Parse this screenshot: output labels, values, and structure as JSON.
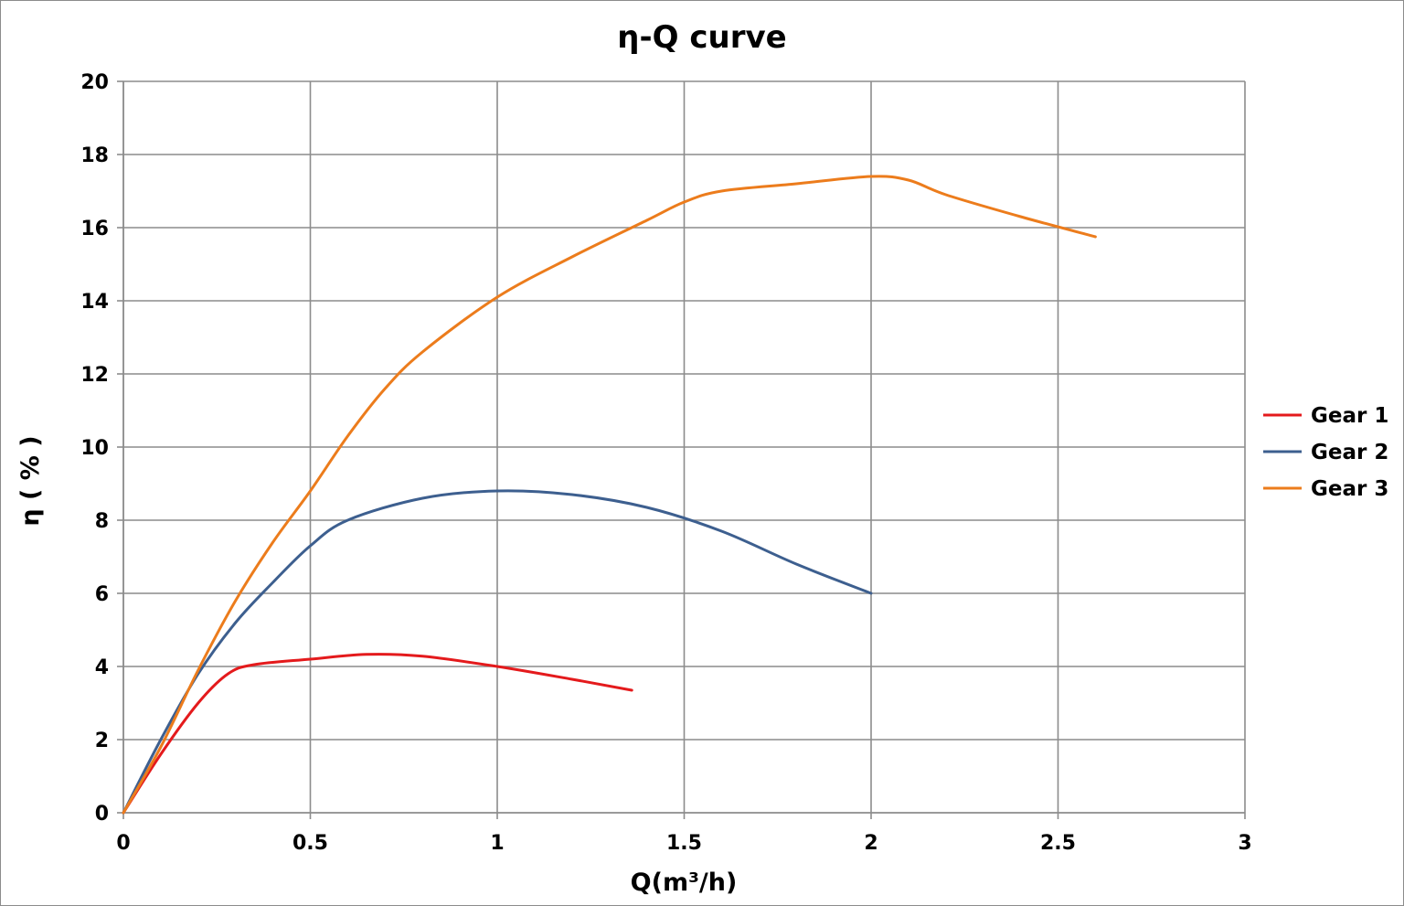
{
  "chart_data": {
    "type": "line",
    "title": "η-Q  curve",
    "xlabel": "Q(m³/h)",
    "ylabel": "η ( % )",
    "xlim": [
      0,
      3
    ],
    "ylim": [
      0,
      20
    ],
    "x_ticks": [
      0,
      0.5,
      1,
      1.5,
      2,
      2.5,
      3
    ],
    "x_tick_labels": [
      "0",
      "0.5",
      "1",
      "1.5",
      "2",
      "2.5",
      "3"
    ],
    "y_ticks": [
      0,
      2,
      4,
      6,
      8,
      10,
      12,
      14,
      16,
      18,
      20
    ],
    "y_tick_labels": [
      "0",
      "2",
      "4",
      "6",
      "8",
      "10",
      "12",
      "14",
      "16",
      "18",
      "20"
    ],
    "grid": true,
    "legend_position": "right",
    "series": [
      {
        "name": "Gear 1",
        "color": "#e41a1c",
        "x": [
          0,
          0.1,
          0.2,
          0.28,
          0.35,
          0.5,
          0.65,
          0.8,
          1.0,
          1.2,
          1.36
        ],
        "y": [
          0,
          1.6,
          3.0,
          3.8,
          4.05,
          4.2,
          4.33,
          4.28,
          4.0,
          3.65,
          3.35
        ]
      },
      {
        "name": "Gear 2",
        "color": "#3d5f8f",
        "x": [
          0,
          0.1,
          0.2,
          0.3,
          0.4,
          0.5,
          0.6,
          0.8,
          1.0,
          1.2,
          1.4,
          1.6,
          1.8,
          2.0
        ],
        "y": [
          0,
          2.0,
          3.8,
          5.2,
          6.3,
          7.3,
          8.0,
          8.6,
          8.8,
          8.7,
          8.35,
          7.7,
          6.8,
          6.0
        ]
      },
      {
        "name": "Gear 3",
        "color": "#ec7c1c",
        "x": [
          0,
          0.1,
          0.2,
          0.3,
          0.4,
          0.5,
          0.6,
          0.7,
          0.8,
          1.0,
          1.2,
          1.4,
          1.5,
          1.6,
          1.8,
          2.0,
          2.1,
          2.2,
          2.4,
          2.6
        ],
        "y": [
          0,
          1.8,
          3.9,
          5.8,
          7.4,
          8.8,
          10.3,
          11.6,
          12.6,
          14.1,
          15.2,
          16.2,
          16.7,
          17.0,
          17.2,
          17.4,
          17.3,
          16.9,
          16.3,
          15.75
        ]
      }
    ]
  }
}
